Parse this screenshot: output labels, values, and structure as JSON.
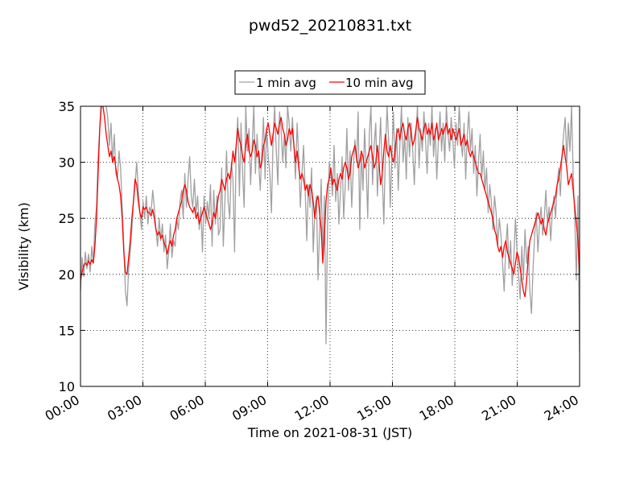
{
  "chart_data": {
    "type": "line",
    "title": "pwd52_20210831.txt",
    "xlabel": "Time on 2021-08-31 (JST)",
    "ylabel": "Visibility (km)",
    "xlim": [
      "00:00",
      "24:00"
    ],
    "ylim": [
      10,
      35
    ],
    "xticks": [
      "00:00",
      "03:00",
      "06:00",
      "09:00",
      "12:00",
      "15:00",
      "18:00",
      "21:00",
      "24:00"
    ],
    "yticks": [
      "10",
      "15",
      "20",
      "25",
      "30",
      "35"
    ],
    "grid": true,
    "legend_position": "top-center",
    "series": [
      {
        "name": "1 min avg",
        "color": "#a0a0a0",
        "step_minutes": 5,
        "envelope_note": "",
        "y": [
          18.5,
          21.5,
          19.8,
          22.0,
          20.5,
          21.8,
          20.2,
          22.5,
          21.0,
          24.5,
          26.0,
          30.5,
          33.0,
          36.0,
          37.0,
          36.0,
          35.0,
          34.0,
          31.5,
          33.5,
          30.0,
          32.5,
          29.0,
          28.5,
          31.0,
          29.5,
          26.0,
          22.5,
          18.5,
          17.2,
          20.5,
          22.0,
          24.0,
          26.5,
          28.0,
          30.0,
          27.5,
          25.5,
          24.0,
          26.5,
          25.0,
          27.0,
          24.5,
          26.0,
          25.5,
          27.5,
          26.0,
          24.0,
          22.5,
          25.0,
          23.0,
          24.5,
          22.0,
          23.5,
          20.5,
          22.0,
          24.5,
          21.5,
          23.0,
          22.5,
          25.0,
          24.0,
          26.5,
          27.5,
          25.0,
          29.0,
          26.0,
          28.5,
          30.5,
          27.0,
          26.0,
          28.5,
          25.5,
          27.0,
          24.0,
          26.0,
          22.0,
          27.0,
          24.5,
          26.5,
          25.0,
          28.0,
          22.5,
          27.5,
          24.5,
          27.0,
          23.5,
          24.0,
          29.5,
          22.5,
          26.5,
          31.0,
          26.5,
          25.0,
          30.0,
          28.5,
          22.0,
          31.5,
          34.0,
          27.0,
          33.5,
          29.0,
          26.0,
          35.0,
          31.0,
          33.0,
          28.0,
          31.5,
          35.0,
          29.0,
          32.5,
          30.0,
          27.5,
          31.0,
          34.0,
          28.5,
          33.0,
          30.5,
          29.0,
          25.5,
          32.0,
          35.0,
          31.0,
          28.0,
          34.5,
          33.0,
          30.0,
          32.5,
          29.5,
          35.0,
          33.5,
          31.0,
          34.0,
          31.5,
          28.5,
          33.5,
          30.5,
          26.0,
          29.0,
          31.5,
          27.5,
          23.0,
          28.0,
          26.0,
          29.5,
          22.0,
          25.5,
          27.0,
          19.5,
          24.0,
          28.5,
          21.5,
          27.0,
          13.8,
          25.0,
          30.0,
          29.0,
          27.0,
          31.5,
          26.5,
          29.0,
          24.5,
          27.5,
          30.5,
          25.0,
          28.0,
          33.0,
          27.5,
          31.0,
          26.0,
          29.5,
          32.0,
          30.0,
          34.5,
          24.0,
          31.0,
          27.5,
          33.0,
          29.5,
          25.0,
          32.5,
          35.0,
          28.0,
          31.5,
          33.5,
          27.0,
          30.5,
          34.0,
          29.0,
          24.5,
          31.0,
          35.0,
          32.0,
          26.0,
          30.5,
          34.5,
          29.5,
          33.0,
          27.5,
          31.5,
          35.0,
          30.0,
          32.5,
          28.5,
          34.0,
          30.5,
          33.5,
          31.0,
          28.0,
          32.5,
          35.0,
          29.5,
          33.0,
          31.0,
          34.5,
          32.0,
          29.0,
          33.5,
          31.5,
          35.0,
          30.5,
          33.0,
          28.5,
          32.0,
          34.5,
          31.0,
          33.5,
          30.0,
          35.0,
          32.5,
          31.0,
          34.0,
          32.0,
          29.5,
          33.5,
          31.5,
          35.0,
          32.0,
          30.5,
          33.5,
          28.5,
          32.5,
          34.5,
          31.0,
          33.0,
          29.0,
          31.5,
          27.0,
          30.0,
          32.5,
          28.5,
          31.0,
          27.5,
          29.5,
          25.5,
          28.0,
          26.5,
          24.0,
          27.0,
          25.5,
          22.5,
          25.0,
          23.5,
          21.0,
          18.5,
          22.5,
          24.5,
          20.5,
          23.0,
          19.0,
          21.5,
          25.0,
          22.0,
          20.0,
          17.8,
          22.5,
          19.5,
          24.0,
          21.0,
          22.5,
          18.5,
          16.5,
          20.5,
          23.5,
          25.5,
          22.0,
          24.5,
          26.0,
          23.5,
          25.0,
          27.5,
          24.5,
          26.0,
          23.0,
          25.5,
          27.0,
          25.0,
          28.0,
          29.5,
          27.0,
          30.5,
          32.5,
          34.0,
          30.0,
          33.5,
          31.0,
          35.0,
          29.0,
          25.0,
          19.5,
          27.0,
          13.0
        ]
      },
      {
        "name": "10 min avg",
        "color": "#ff0000",
        "step_minutes": 5,
        "y": [
          19.5,
          20.2,
          20.8,
          21.0,
          20.8,
          21.2,
          20.9,
          21.3,
          21.0,
          22.5,
          25.0,
          29.0,
          33.0,
          35.0,
          35.0,
          34.0,
          32.5,
          31.5,
          30.5,
          31.0,
          30.0,
          30.5,
          29.5,
          28.5,
          28.0,
          27.0,
          25.0,
          22.0,
          20.2,
          20.0,
          21.5,
          23.0,
          25.0,
          26.5,
          28.5,
          28.0,
          26.5,
          25.5,
          25.0,
          26.0,
          25.8,
          26.0,
          25.5,
          25.5,
          25.2,
          25.8,
          25.0,
          24.0,
          23.5,
          23.8,
          23.2,
          23.5,
          22.8,
          22.5,
          21.8,
          22.5,
          23.0,
          22.5,
          23.5,
          24.0,
          25.0,
          25.5,
          26.0,
          26.5,
          27.5,
          28.0,
          27.5,
          26.5,
          26.0,
          25.8,
          25.5,
          26.0,
          25.0,
          25.5,
          24.5,
          25.0,
          25.5,
          26.0,
          25.5,
          25.0,
          24.5,
          24.0,
          24.5,
          25.5,
          25.0,
          26.0,
          27.0,
          27.5,
          28.5,
          28.0,
          27.5,
          28.5,
          29.0,
          28.5,
          29.5,
          31.0,
          30.0,
          31.5,
          33.0,
          32.0,
          31.5,
          30.5,
          30.0,
          31.5,
          32.5,
          31.0,
          30.5,
          31.0,
          32.0,
          31.5,
          30.5,
          31.0,
          29.5,
          30.0,
          31.5,
          32.0,
          33.0,
          33.5,
          32.5,
          31.5,
          32.5,
          33.5,
          33.0,
          32.5,
          33.5,
          34.0,
          33.0,
          32.5,
          31.5,
          32.0,
          33.0,
          32.5,
          33.0,
          31.5,
          30.0,
          31.0,
          29.5,
          28.5,
          29.0,
          28.5,
          27.5,
          28.0,
          27.0,
          28.0,
          27.5,
          26.5,
          25.0,
          26.5,
          27.0,
          25.5,
          24.0,
          21.0,
          23.5,
          26.5,
          28.0,
          28.5,
          29.5,
          28.0,
          28.5,
          28.0,
          27.5,
          28.5,
          29.0,
          28.5,
          29.5,
          30.0,
          29.5,
          28.5,
          29.0,
          30.5,
          31.0,
          31.5,
          30.5,
          29.5,
          30.0,
          31.0,
          30.5,
          29.5,
          30.0,
          30.5,
          31.0,
          31.5,
          30.5,
          29.5,
          30.0,
          31.5,
          30.0,
          28.0,
          29.0,
          31.0,
          32.5,
          31.0,
          30.5,
          31.5,
          30.5,
          30.0,
          31.0,
          32.5,
          33.0,
          32.0,
          33.0,
          33.5,
          32.5,
          32.0,
          33.0,
          33.5,
          32.5,
          31.5,
          32.0,
          33.0,
          34.0,
          33.0,
          32.5,
          32.0,
          33.0,
          33.5,
          32.5,
          33.0,
          32.5,
          33.5,
          32.0,
          32.5,
          33.5,
          32.0,
          32.5,
          33.0,
          32.5,
          33.0,
          33.5,
          32.5,
          33.0,
          32.0,
          33.0,
          32.5,
          32.0,
          32.5,
          33.0,
          31.5,
          32.0,
          32.5,
          31.5,
          32.0,
          31.0,
          30.5,
          31.0,
          30.5,
          30.0,
          29.5,
          29.0,
          29.0,
          28.5,
          28.0,
          27.5,
          27.0,
          26.5,
          26.0,
          25.5,
          25.0,
          24.0,
          23.5,
          22.5,
          22.0,
          22.5,
          21.5,
          22.5,
          23.0,
          22.0,
          21.5,
          21.0,
          20.5,
          20.0,
          21.0,
          22.0,
          21.5,
          20.5,
          19.5,
          18.5,
          18.0,
          19.5,
          21.5,
          23.0,
          23.5,
          24.0,
          24.5,
          25.0,
          25.5,
          25.0,
          24.5,
          25.0,
          24.0,
          23.5,
          24.5,
          25.0,
          25.5,
          26.0,
          26.5,
          27.0,
          28.0,
          28.5,
          29.5,
          30.5,
          31.5,
          30.5,
          29.5,
          28.0,
          28.5,
          29.0,
          27.5,
          26.0,
          24.5,
          23.0,
          20.0
        ]
      }
    ]
  }
}
